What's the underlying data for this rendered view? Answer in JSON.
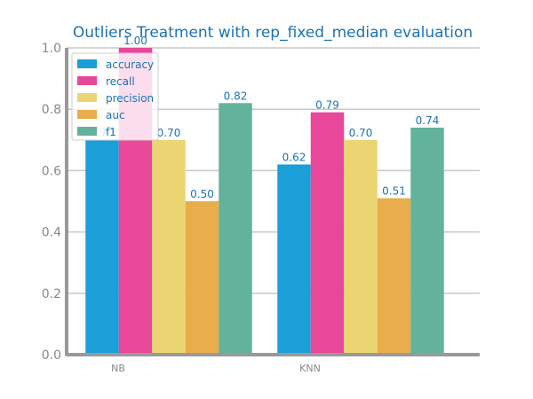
{
  "chart_data": {
    "type": "bar",
    "title": "Outliers Treatment with rep_fixed_median evaluation",
    "xlabel": "",
    "ylabel": "",
    "categories": [
      "NB",
      "KNN"
    ],
    "series": [
      {
        "name": "accuracy",
        "values": [
          0.7,
          0.62
        ],
        "labels": [
          "0.70",
          "0.62"
        ],
        "color": "#1a9fd9"
      },
      {
        "name": "recall",
        "values": [
          1.0,
          0.79
        ],
        "labels": [
          "1.00",
          "0.79"
        ],
        "color": "#e9479a"
      },
      {
        "name": "precision",
        "values": [
          0.7,
          0.7
        ],
        "labels": [
          "0.70",
          "0.70"
        ],
        "color": "#ebd572"
      },
      {
        "name": "auc",
        "values": [
          0.5,
          0.51
        ],
        "labels": [
          "0.50",
          "0.51"
        ],
        "color": "#e9ad4c"
      },
      {
        "name": "f1",
        "values": [
          0.82,
          0.74
        ],
        "labels": [
          "0.82",
          "0.74"
        ],
        "color": "#62b29c"
      }
    ],
    "ylim": [
      0,
      1.0
    ],
    "yticks": [
      "0.0",
      "0.2",
      "0.4",
      "0.6",
      "0.8",
      "1.0"
    ],
    "grid": true,
    "legend_position": "top-left"
  }
}
